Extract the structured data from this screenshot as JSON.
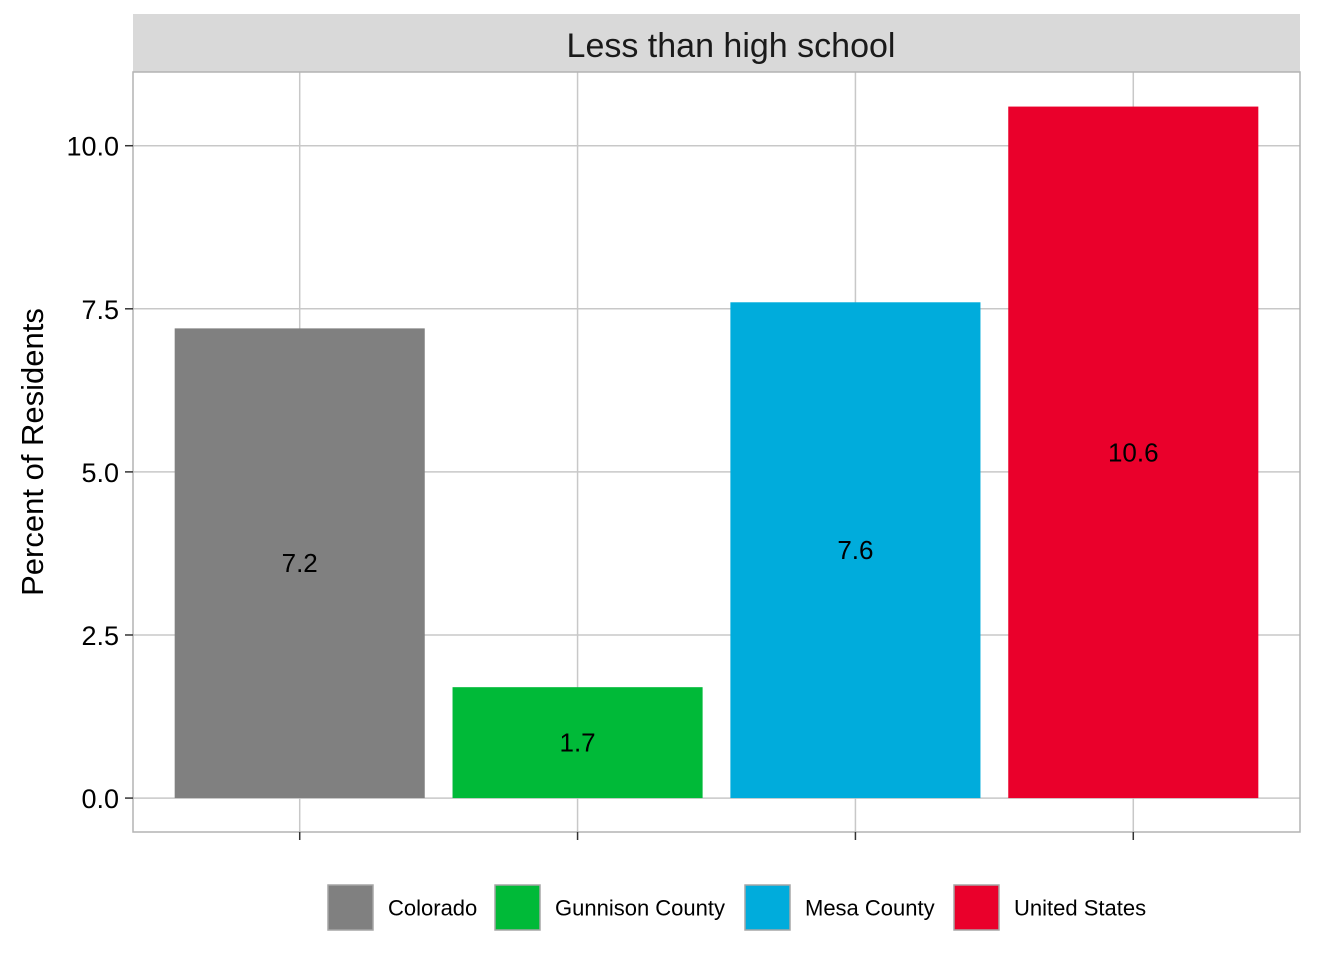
{
  "chart_data": {
    "type": "bar",
    "facet_title": "Less than high school",
    "categories": [
      "Colorado",
      "Gunnison County",
      "Mesa County",
      "United States"
    ],
    "values": [
      7.2,
      1.7,
      7.6,
      10.6
    ],
    "value_labels": [
      "7.2",
      "1.7",
      "7.6",
      "10.6"
    ],
    "colors": [
      "#808080",
      "#00BA38",
      "#00ACDC",
      "#EA002B"
    ],
    "xlabel": "",
    "ylabel": "Percent of Residents",
    "ylim": [
      -0.52,
      11.13
    ],
    "yticks": [
      0.0,
      2.5,
      5.0,
      7.5,
      10.0
    ],
    "ytick_labels": [
      "0.0",
      "2.5",
      "5.0",
      "7.5",
      "10.0"
    ],
    "grid": true,
    "legend": {
      "position": "bottom",
      "entries": [
        "Colorado",
        "Gunnison County",
        "Mesa County",
        "United States"
      ]
    }
  }
}
